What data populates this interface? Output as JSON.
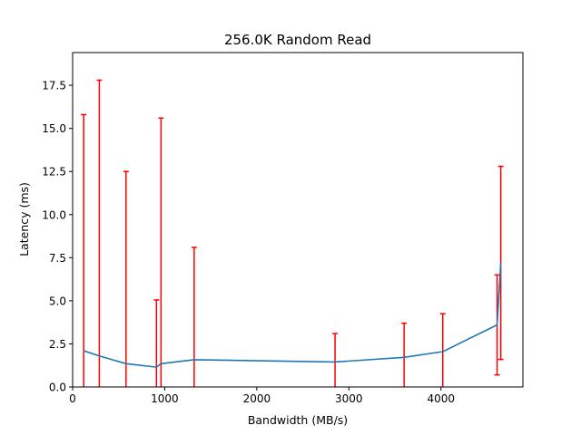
{
  "chart_data": {
    "type": "line",
    "title": "256.0K  Random Read",
    "xlabel": "Bandwidth (MB/s)",
    "ylabel": "Latency (ms)",
    "xlim": [
      0,
      4890
    ],
    "ylim": [
      0,
      19.4
    ],
    "xticks": [
      0,
      1000,
      2000,
      3000,
      4000
    ],
    "xtick_labels": [
      "0",
      "1000",
      "2000",
      "3000",
      "4000"
    ],
    "yticks": [
      0,
      2.5,
      5,
      7.5,
      10,
      12.5,
      15,
      17.5
    ],
    "ytick_labels": [
      "0.0",
      "2.5",
      "5.0",
      "7.5",
      "10.0",
      "12.5",
      "15.0",
      "17.5"
    ],
    "grid": false,
    "series": [
      {
        "color": "#1f77b4",
        "x": [
          120,
          290,
          580,
          910,
          960,
          1320,
          2850,
          3600,
          4020,
          4610,
          4650
        ],
        "y": [
          2.1,
          1.8,
          1.35,
          1.15,
          1.35,
          1.58,
          1.45,
          1.72,
          2.05,
          3.6,
          7.2
        ]
      }
    ],
    "error_bars": {
      "color": "#ff0000",
      "items": [
        {
          "x": 120,
          "low": 0.0,
          "high": 15.8
        },
        {
          "x": 290,
          "low": 0.0,
          "high": 17.8
        },
        {
          "x": 580,
          "low": 0.0,
          "high": 12.5
        },
        {
          "x": 910,
          "low": 0.0,
          "high": 5.05
        },
        {
          "x": 960,
          "low": 0.0,
          "high": 15.6
        },
        {
          "x": 1320,
          "low": 0.0,
          "high": 8.1
        },
        {
          "x": 2850,
          "low": 0.0,
          "high": 3.1
        },
        {
          "x": 3600,
          "low": 0.0,
          "high": 3.7
        },
        {
          "x": 4020,
          "low": 0.0,
          "high": 4.25
        },
        {
          "x": 4610,
          "low": 0.7,
          "high": 6.5
        },
        {
          "x": 4650,
          "low": 1.6,
          "high": 12.8
        }
      ]
    }
  }
}
